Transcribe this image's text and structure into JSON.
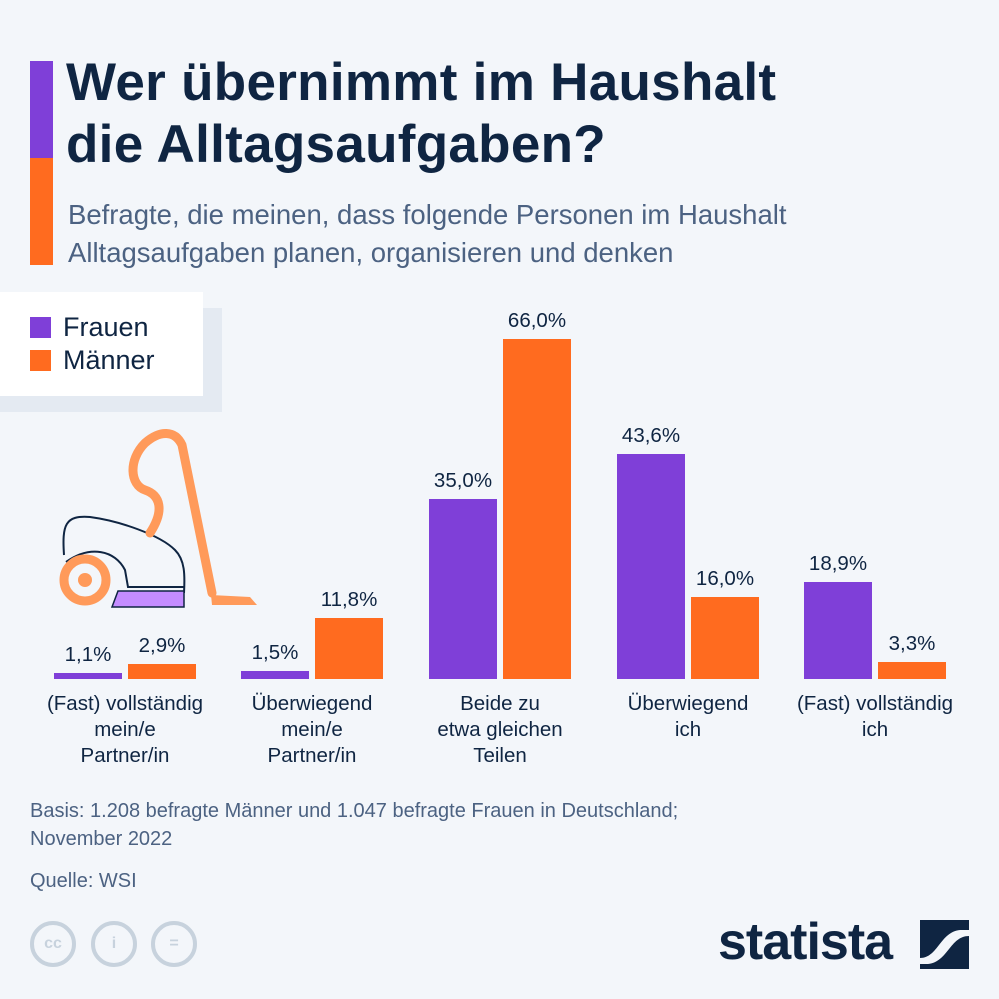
{
  "header": {
    "title": "Wer übernimmt im Haushalt\ndie Alltagsaufgaben?",
    "subtitle": "Befragte, die meinen, dass folgende Personen im Haushalt Alltagsaufgaben planen, organisieren und denken"
  },
  "colors": {
    "frauen": "#7f3fd8",
    "maenner": "#ff6b1f",
    "text": "#0f2542"
  },
  "illustration": {
    "icon": "vacuum-cleaner-icon"
  },
  "chart_data": {
    "type": "bar",
    "title": "Wer übernimmt im Haushalt die Alltagsaufgaben?",
    "subtitle": "Befragte, die meinen, dass folgende Personen im Haushalt Alltagsaufgaben planen, organisieren und denken",
    "xlabel": "",
    "ylabel": "",
    "ylim": [
      0,
      70
    ],
    "grid": false,
    "legend": "top-left",
    "categories": [
      "(Fast) vollständig\nmein/e\nPartner/in",
      "Überwiegend\nmein/e\nPartner/in",
      "Beide zu\netwa gleichen\nTeilen",
      "Überwiegend\nich",
      "(Fast) vollständig\nich"
    ],
    "series": [
      {
        "name": "Frauen",
        "values": [
          1.1,
          1.5,
          35.0,
          43.6,
          18.9
        ],
        "labels": [
          "1,1%",
          "1,5%",
          "35,0%",
          "43,6%",
          "18,9%"
        ]
      },
      {
        "name": "Männer",
        "values": [
          2.9,
          11.8,
          66.0,
          16.0,
          3.3
        ],
        "labels": [
          "2,9%",
          "11,8%",
          "66,0%",
          "16,0%",
          "3,3%"
        ]
      }
    ]
  },
  "footer": {
    "basis": "Basis: 1.208 befragte Männer und 1.047 befragte Frauen in Deutschland;\nNovember 2022",
    "source": "Quelle: WSI",
    "license_icons": [
      "cc-icon",
      "attribution-icon",
      "no-derivatives-icon"
    ],
    "license_glyphs": [
      "cc",
      "i",
      "="
    ],
    "brand": "statista"
  }
}
